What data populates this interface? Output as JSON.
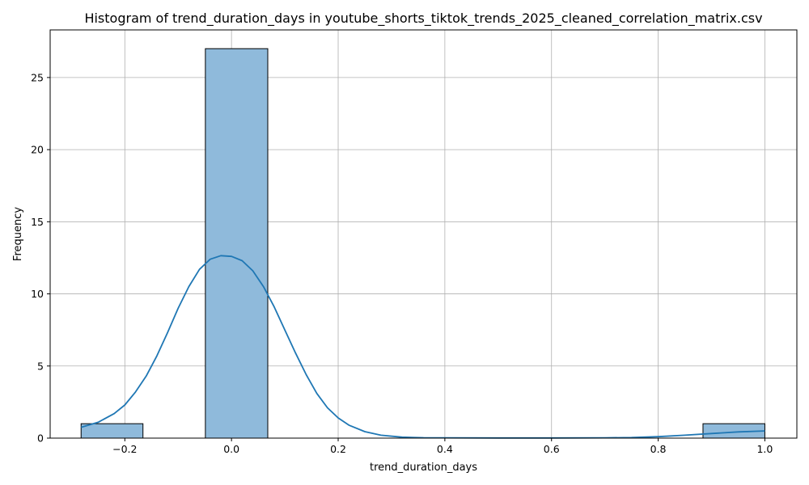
{
  "chart_data": {
    "type": "bar",
    "title": "Histogram of trend_duration_days in youtube_shorts_tiktok_trends_2025_cleaned_correlation_matrix.csv",
    "xlabel": "trend_duration_days",
    "ylabel": "Frequency",
    "xlim": [
      -0.34,
      1.06
    ],
    "ylim": [
      0,
      28.3
    ],
    "xticks": [
      -0.2,
      0.0,
      0.2,
      0.4,
      0.6,
      0.8,
      1.0
    ],
    "xtick_labels": [
      "−0.2",
      "0.0",
      "0.2",
      "0.4",
      "0.6",
      "0.8",
      "1.0"
    ],
    "yticks": [
      0,
      5,
      10,
      15,
      20,
      25
    ],
    "ytick_labels": [
      "0",
      "5",
      "10",
      "15",
      "20",
      "25"
    ],
    "grid": true,
    "bins": [
      {
        "x0": -0.282,
        "x1": -0.166,
        "count": 1
      },
      {
        "x0": -0.166,
        "x1": -0.049,
        "count": 0
      },
      {
        "x0": -0.049,
        "x1": 0.068,
        "count": 27
      },
      {
        "x0": 0.068,
        "x1": 0.184,
        "count": 0
      },
      {
        "x0": 0.184,
        "x1": 0.301,
        "count": 0
      },
      {
        "x0": 0.301,
        "x1": 0.418,
        "count": 0
      },
      {
        "x0": 0.418,
        "x1": 0.534,
        "count": 0
      },
      {
        "x0": 0.534,
        "x1": 0.651,
        "count": 0
      },
      {
        "x0": 0.651,
        "x1": 0.767,
        "count": 0
      },
      {
        "x0": 0.767,
        "x1": 0.884,
        "count": 0
      },
      {
        "x0": 0.884,
        "x1": 1.0,
        "count": 1
      }
    ],
    "kde": {
      "x": [
        -0.282,
        -0.25,
        -0.22,
        -0.2,
        -0.18,
        -0.16,
        -0.14,
        -0.12,
        -0.1,
        -0.08,
        -0.06,
        -0.04,
        -0.02,
        0.0,
        0.02,
        0.04,
        0.06,
        0.08,
        0.1,
        0.12,
        0.14,
        0.16,
        0.18,
        0.2,
        0.22,
        0.25,
        0.28,
        0.32,
        0.36,
        0.4,
        0.5,
        0.6,
        0.7,
        0.75,
        0.8,
        0.85,
        0.9,
        0.95,
        1.0
      ],
      "y": [
        0.75,
        1.1,
        1.7,
        2.3,
        3.2,
        4.3,
        5.7,
        7.3,
        9.0,
        10.5,
        11.7,
        12.4,
        12.65,
        12.6,
        12.3,
        11.6,
        10.5,
        9.1,
        7.5,
        5.9,
        4.4,
        3.1,
        2.1,
        1.4,
        0.9,
        0.45,
        0.2,
        0.07,
        0.03,
        0.02,
        0.01,
        0.01,
        0.02,
        0.04,
        0.1,
        0.2,
        0.32,
        0.43,
        0.5
      ]
    },
    "colors": {
      "bar_fill": "#8fbadb",
      "bar_edge": "#000000",
      "kde_line": "#1f77b4",
      "grid": "#b0b0b0"
    }
  }
}
